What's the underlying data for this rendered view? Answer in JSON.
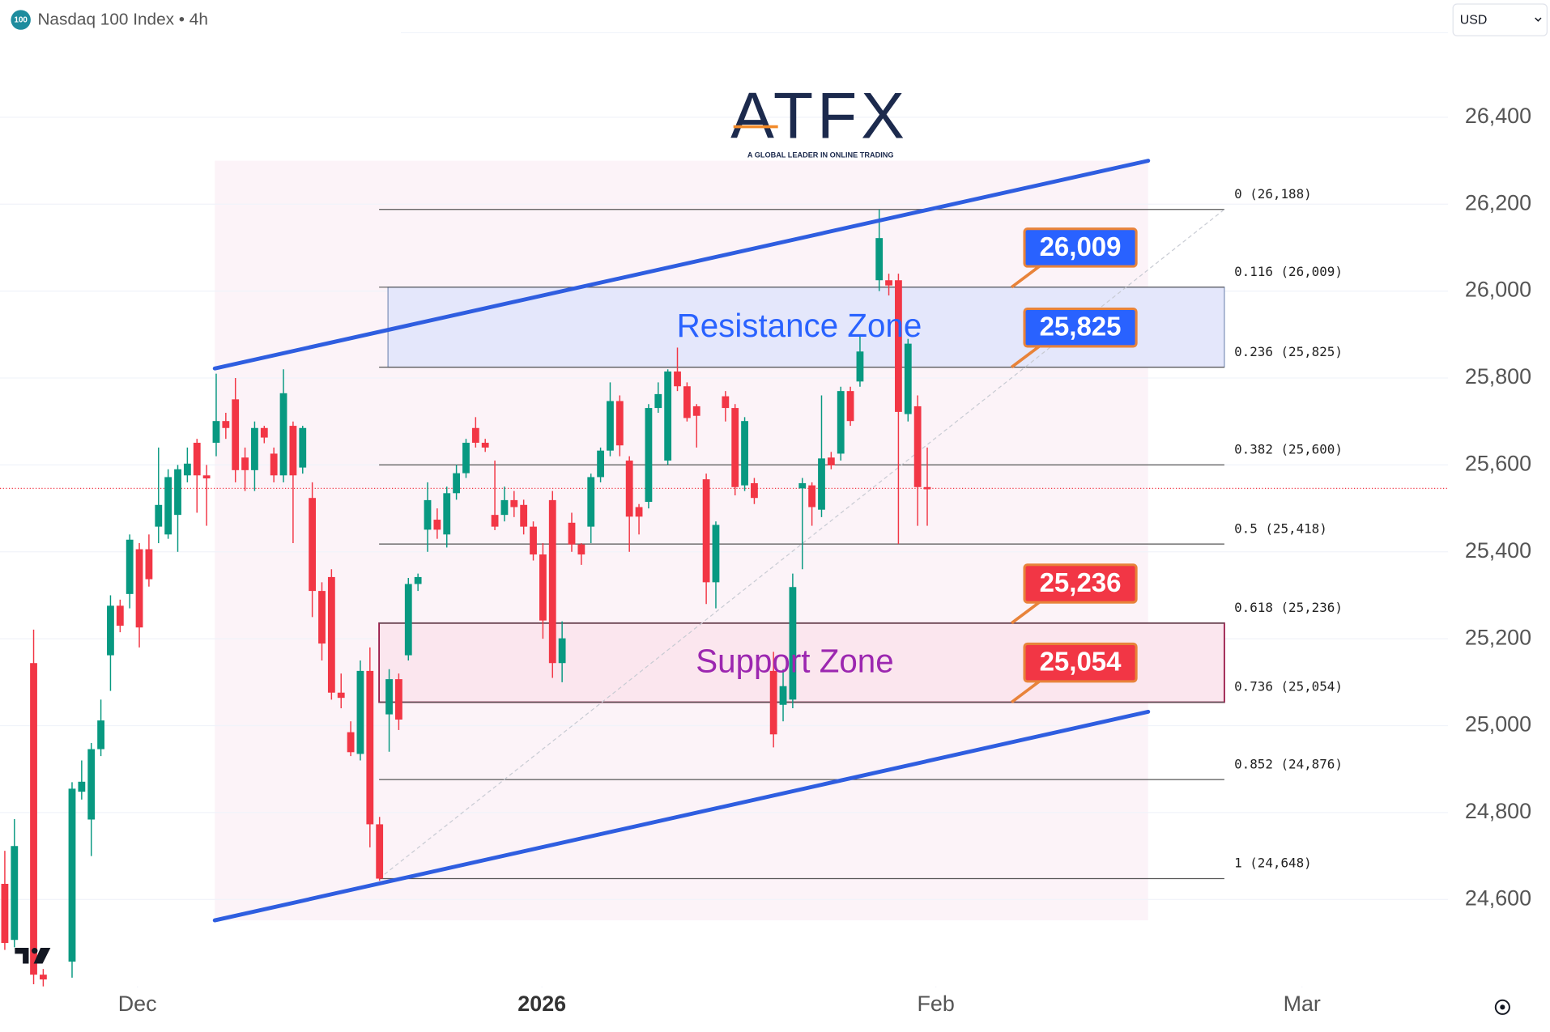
{
  "header": {
    "icon": "100",
    "symbol": "Nasdaq 100 Index • 4h",
    "currency": "USD"
  },
  "logo": {
    "name": "ATFX",
    "tagline": "A GLOBAL LEADER IN ONLINE TRADING"
  },
  "chart_data": {
    "type": "candlestick",
    "up_color": "#089981",
    "down_color": "#f23645",
    "xlim": [
      -0.5,
      150.2
    ],
    "xticks": [
      {
        "value": 13.8,
        "label": "Dec"
      },
      {
        "value": 55.9,
        "label": "2026"
      },
      {
        "value": 96.9,
        "label": "Feb"
      },
      {
        "value": 135.0,
        "label": "Mar"
      }
    ],
    "ylim": [
      24400,
      26590
    ],
    "yticks": [
      {
        "value": 24600,
        "label": "24,600"
      },
      {
        "value": 24800,
        "label": "24,800"
      },
      {
        "value": 25000,
        "label": "25,000"
      },
      {
        "value": 25200,
        "label": "25,200"
      },
      {
        "value": 25400,
        "label": "25,400"
      },
      {
        "value": 25600,
        "label": "25,600"
      },
      {
        "value": 25800,
        "label": "25,800"
      },
      {
        "value": 26000,
        "label": "26,000"
      },
      {
        "value": 26200,
        "label": "26,200"
      },
      {
        "value": 26400,
        "label": "26,400"
      }
    ],
    "grid": true,
    "candles": [
      [
        0,
        24636,
        24712,
        24484,
        24500
      ],
      [
        1,
        24507,
        24785,
        24490,
        24723
      ],
      [
        3,
        25144,
        25221,
        24405,
        24427
      ],
      [
        4,
        24427,
        24440,
        24400,
        24416
      ],
      [
        7,
        24457,
        24870,
        24420,
        24855
      ],
      [
        8,
        24848,
        24920,
        24830,
        24871
      ],
      [
        9,
        24784,
        24960,
        24700,
        24946
      ],
      [
        10,
        24946,
        25060,
        24930,
        25012
      ],
      [
        11,
        25162,
        25300,
        25080,
        25276
      ],
      [
        12,
        25276,
        25290,
        25215,
        25230
      ],
      [
        13,
        25303,
        25440,
        25270,
        25428
      ],
      [
        14,
        25406,
        25420,
        25180,
        25226
      ],
      [
        15,
        25406,
        25440,
        25320,
        25337
      ],
      [
        16,
        25458,
        25640,
        25420,
        25508
      ],
      [
        17,
        25440,
        25590,
        25430,
        25572
      ],
      [
        18,
        25485,
        25600,
        25400,
        25590
      ],
      [
        19,
        25576,
        25640,
        25560,
        25603
      ],
      [
        20,
        25651,
        25660,
        25490,
        25576
      ],
      [
        21,
        25576,
        25600,
        25460,
        25569
      ],
      [
        22,
        25651,
        25810,
        25620,
        25701
      ],
      [
        23,
        25701,
        25720,
        25660,
        25685
      ],
      [
        24,
        25751,
        25800,
        25560,
        25588
      ],
      [
        25,
        25617,
        25640,
        25540,
        25588
      ],
      [
        26,
        25588,
        25700,
        25540,
        25685
      ],
      [
        27,
        25685,
        25690,
        25650,
        25663
      ],
      [
        28,
        25626,
        25640,
        25560,
        25576
      ],
      [
        29,
        25576,
        25820,
        25560,
        25765
      ],
      [
        30,
        25690,
        25700,
        25420,
        25576
      ],
      [
        31,
        25594,
        25690,
        25580,
        25685
      ],
      [
        32,
        25524,
        25560,
        25250,
        25310
      ],
      [
        33,
        25310,
        25330,
        25150,
        25189
      ],
      [
        34,
        25342,
        25360,
        25060,
        25076
      ],
      [
        35,
        25076,
        25120,
        25040,
        25064
      ],
      [
        36,
        24985,
        25010,
        24930,
        24939
      ],
      [
        37,
        24935,
        25150,
        24920,
        25126
      ],
      [
        38,
        25126,
        25180,
        24720,
        24773
      ],
      [
        39,
        24773,
        24790,
        24643,
        24648
      ],
      [
        40,
        25026,
        25130,
        24940,
        25107
      ],
      [
        41,
        25107,
        25120,
        24990,
        25014
      ],
      [
        42,
        25162,
        25340,
        25150,
        25326
      ],
      [
        43,
        25326,
        25350,
        25310,
        25342
      ],
      [
        44,
        25451,
        25560,
        25400,
        25519
      ],
      [
        45,
        25474,
        25500,
        25430,
        25451
      ],
      [
        46,
        25440,
        25550,
        25410,
        25535
      ],
      [
        47,
        25535,
        25600,
        25520,
        25581
      ],
      [
        48,
        25581,
        25660,
        25570,
        25651
      ],
      [
        49,
        25685,
        25710,
        25640,
        25651
      ],
      [
        50,
        25651,
        25660,
        25630,
        25640
      ],
      [
        51,
        25485,
        25610,
        25450,
        25458
      ],
      [
        52,
        25485,
        25550,
        25470,
        25519
      ],
      [
        53,
        25519,
        25540,
        25480,
        25503
      ],
      [
        54,
        25508,
        25520,
        25440,
        25458
      ],
      [
        55,
        25458,
        25470,
        25380,
        25394
      ],
      [
        56,
        25394,
        25420,
        25200,
        25242
      ],
      [
        57,
        25519,
        25540,
        25110,
        25144
      ],
      [
        58,
        25144,
        25240,
        25100,
        25201
      ],
      [
        59,
        25467,
        25490,
        25400,
        25417
      ],
      [
        60,
        25417,
        25420,
        25370,
        25394
      ],
      [
        61,
        25458,
        25580,
        25420,
        25572
      ],
      [
        62,
        25572,
        25640,
        25560,
        25633
      ],
      [
        63,
        25633,
        25790,
        25620,
        25747
      ],
      [
        64,
        25747,
        25760,
        25620,
        25645
      ],
      [
        65,
        25610,
        25620,
        25400,
        25481
      ],
      [
        66,
        25503,
        25510,
        25440,
        25481
      ],
      [
        67,
        25515,
        25740,
        25500,
        25731
      ],
      [
        68,
        25731,
        25790,
        25720,
        25763
      ],
      [
        69,
        25610,
        25820,
        25600,
        25815
      ],
      [
        70,
        25815,
        25870,
        25770,
        25781
      ],
      [
        71,
        25781,
        25790,
        25700,
        25708
      ],
      [
        72,
        25735,
        25740,
        25640,
        25713
      ],
      [
        73,
        25567,
        25580,
        25280,
        25330
      ],
      [
        74,
        25330,
        25470,
        25270,
        25462
      ],
      [
        75,
        25758,
        25770,
        25700,
        25731
      ],
      [
        76,
        25731,
        25740,
        25530,
        25549
      ],
      [
        77,
        25553,
        25710,
        25540,
        25701
      ],
      [
        78,
        25558,
        25570,
        25510,
        25524
      ],
      [
        80,
        25126,
        25170,
        24950,
        24980
      ],
      [
        81,
        25048,
        25130,
        25010,
        25091
      ],
      [
        82,
        25060,
        25350,
        25040,
        25319
      ],
      [
        83,
        25546,
        25570,
        25360,
        25558
      ],
      [
        84,
        25553,
        25560,
        25460,
        25503
      ],
      [
        85,
        25497,
        25760,
        25480,
        25615
      ],
      [
        86,
        25617,
        25630,
        25590,
        25599
      ],
      [
        87,
        25626,
        25780,
        25610,
        25770
      ],
      [
        88,
        25770,
        25780,
        25690,
        25701
      ],
      [
        89,
        25792,
        25900,
        25780,
        25861
      ],
      [
        91,
        26025,
        26188,
        26000,
        26122
      ],
      [
        92,
        26025,
        26040,
        25990,
        26013
      ],
      [
        93,
        26025,
        26040,
        25418,
        25722
      ],
      [
        94,
        25717,
        25890,
        25700,
        25879
      ],
      [
        95,
        25735,
        25760,
        25460,
        25549
      ],
      [
        96,
        25549,
        25640,
        25460,
        25544
      ]
    ],
    "last_price": 25546,
    "channel": {
      "upper": [
        25822,
        26300
      ],
      "lower": [
        24552,
        25032
      ],
      "color": "#2f5ee0"
    },
    "fib_levels": [
      {
        "value": 26188,
        "label": "0 (26,188)"
      },
      {
        "value": 26009,
        "label": "0.116 (26,009)"
      },
      {
        "value": 25825,
        "label": "0.236 (25,825)"
      },
      {
        "value": 25600,
        "label": "0.382 (25,600)"
      },
      {
        "value": 25418,
        "label": "0.5 (25,418)"
      },
      {
        "value": 25236,
        "label": "0.618 (25,236)"
      },
      {
        "value": 25054,
        "label": "0.736 (25,054)"
      },
      {
        "value": 24876,
        "label": "0.852 (24,876)"
      },
      {
        "value": 24648,
        "label": "1 (24,648)"
      }
    ],
    "zones": [
      {
        "label": "Resistance Zone",
        "from": 25825,
        "to": 26009,
        "color": "#2962ff",
        "fill": "#e4e7fb",
        "edge": "#7d8fb8"
      },
      {
        "label": "Support Zone",
        "from": 25054,
        "to": 25236,
        "color": "#9c27b0",
        "fill": "#fbe6ee",
        "edge": "#9a1b4a"
      }
    ],
    "price_tags": [
      {
        "value": 26009,
        "label": "26,009",
        "color": "#2962ff"
      },
      {
        "value": 25825,
        "label": "25,825",
        "color": "#2962ff"
      },
      {
        "value": 25236,
        "label": "25,236",
        "color": "#f23645"
      },
      {
        "value": 25054,
        "label": "25,054",
        "color": "#f23645"
      }
    ]
  }
}
